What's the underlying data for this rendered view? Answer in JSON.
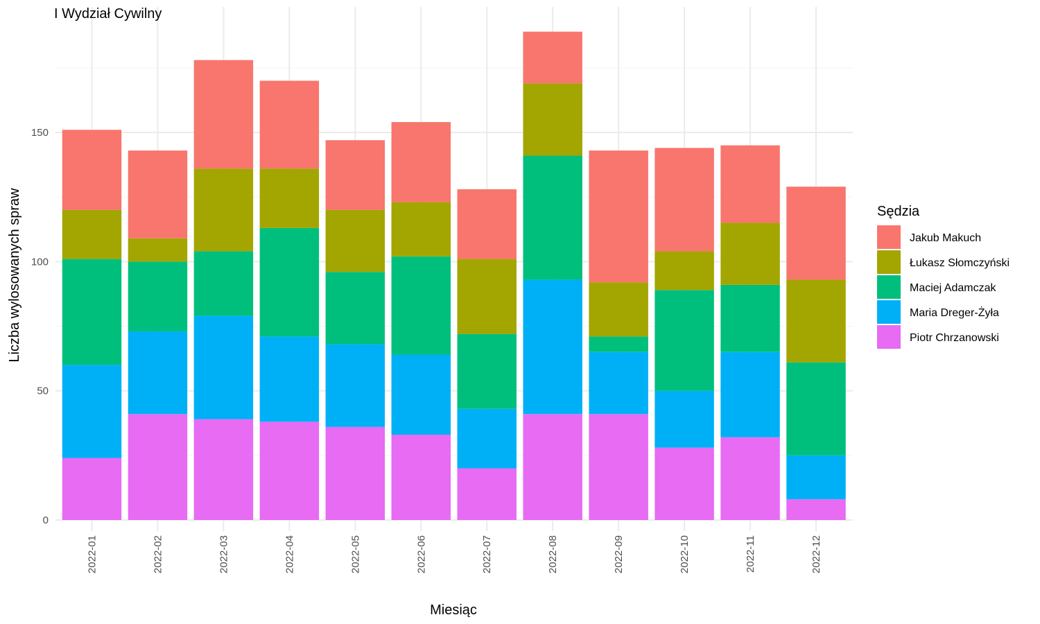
{
  "chart_data": {
    "type": "bar",
    "stacked": true,
    "title": "I Wydział Cywilny",
    "xlabel": "Miesiąc",
    "ylabel": "Liczba wylosowanych spraw",
    "ylim": [
      0,
      190
    ],
    "y_ticks": [
      0,
      50,
      100,
      150
    ],
    "grid": true,
    "legend": {
      "title": "Sędzia",
      "position": "right"
    },
    "categories": [
      "2022-01",
      "2022-02",
      "2022-03",
      "2022-04",
      "2022-05",
      "2022-06",
      "2022-07",
      "2022-08",
      "2022-09",
      "2022-10",
      "2022-11",
      "2022-12"
    ],
    "series": [
      {
        "name": "Jakub Makuch",
        "color": "#F8766D",
        "values": [
          31,
          34,
          42,
          34,
          27,
          31,
          27,
          20,
          51,
          40,
          30,
          36
        ]
      },
      {
        "name": "Łukasz Słomczyński",
        "color": "#A3A500",
        "values": [
          19,
          9,
          32,
          23,
          24,
          21,
          29,
          28,
          21,
          15,
          24,
          32
        ]
      },
      {
        "name": "Maciej Adamczak",
        "color": "#00BF7D",
        "values": [
          41,
          27,
          25,
          42,
          28,
          38,
          29,
          48,
          6,
          39,
          26,
          36
        ]
      },
      {
        "name": "Maria Dreger-Żyła",
        "color": "#00B0F6",
        "values": [
          36,
          32,
          40,
          33,
          32,
          31,
          23,
          52,
          24,
          22,
          33,
          17
        ]
      },
      {
        "name": "Piotr Chrzanowski",
        "color": "#E76BF3",
        "values": [
          24,
          41,
          39,
          38,
          36,
          33,
          20,
          41,
          41,
          28,
          32,
          8
        ]
      }
    ]
  }
}
